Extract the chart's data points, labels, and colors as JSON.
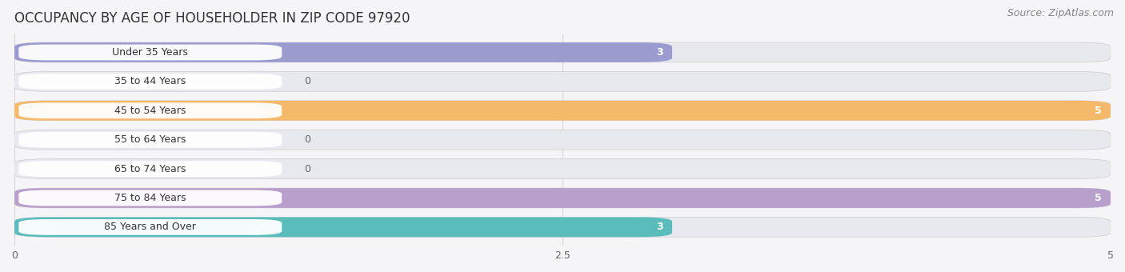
{
  "title": "OCCUPANCY BY AGE OF HOUSEHOLDER IN ZIP CODE 97920",
  "source": "Source: ZipAtlas.com",
  "categories": [
    "Under 35 Years",
    "35 to 44 Years",
    "45 to 54 Years",
    "55 to 64 Years",
    "65 to 74 Years",
    "75 to 84 Years",
    "85 Years and Over"
  ],
  "values": [
    3,
    0,
    5,
    0,
    0,
    5,
    3
  ],
  "bar_colors": [
    "#9b9bcf",
    "#f5a0b8",
    "#f5b96a",
    "#f5a8a8",
    "#a8c8e8",
    "#b89fcc",
    "#5bbcbc"
  ],
  "bar_bg_color": "#e8e8ef",
  "xlim": [
    0,
    5
  ],
  "xticks": [
    0,
    2.5,
    5
  ],
  "background_color": "#f5f5f8",
  "title_fontsize": 12,
  "source_fontsize": 9,
  "label_fontsize": 9,
  "value_fontsize": 9
}
